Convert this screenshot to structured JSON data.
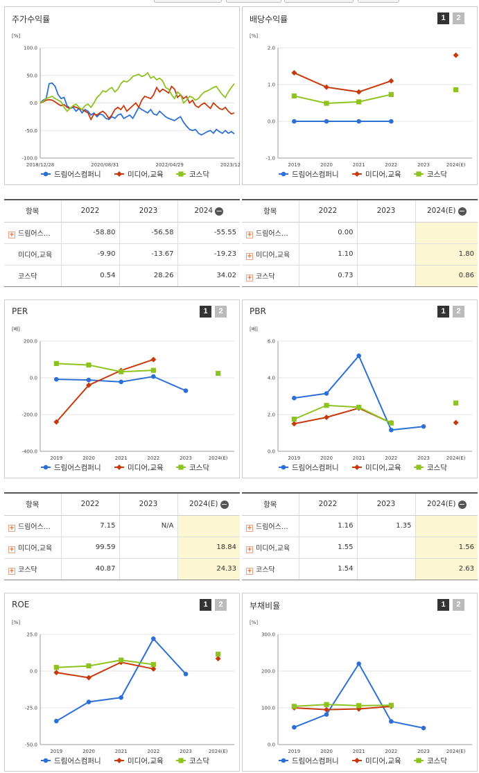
{
  "colors": {
    "drim": "#2c6fd6",
    "media": "#c8380b",
    "kosdaq": "#8dc21f"
  },
  "legend": [
    "드림어스컴퍼니",
    "미디어,교육",
    "코스닥"
  ],
  "panels": {
    "stock": {
      "title": "주가수익률"
    },
    "dividend": {
      "title": "배당수익률"
    },
    "per": {
      "title": "PER"
    },
    "pbr": {
      "title": "PBR"
    },
    "roe": {
      "title": "ROE"
    },
    "debt": {
      "title": "부채비율"
    }
  },
  "pager": {
    "p1": "1",
    "p2": "2"
  },
  "chart_data": [
    {
      "id": "stock",
      "type": "line",
      "unit": "[%]",
      "ylim": [
        -100,
        100
      ],
      "yticks": [
        "100.0",
        "50.0",
        "0.0",
        "-50.0",
        "-100.0"
      ],
      "xticks": [
        "2018/12/28",
        "2020/08/31",
        "2022/04/29",
        "2023/12/28"
      ],
      "series": [
        {
          "name": "드림어스컴퍼니",
          "values": [
            0,
            5,
            8,
            35,
            36,
            30,
            15,
            8,
            10,
            -5,
            -10,
            -8,
            -15,
            -10,
            -18,
            -12,
            -15,
            -22,
            -18,
            -25,
            -20,
            -22,
            -28,
            -30,
            -25,
            -28,
            -22,
            -20,
            -28,
            -25,
            -22,
            -28,
            -18,
            -8,
            -12,
            -15,
            -18,
            -12,
            -20,
            -22,
            -15,
            -20,
            -25,
            -28,
            -30,
            -32,
            -28,
            -25,
            -35,
            -42,
            -48,
            -50,
            -48,
            -55,
            -58,
            -55,
            -52,
            -50,
            -55,
            -48,
            -52,
            -55,
            -50,
            -55,
            -52,
            -56
          ]
        },
        {
          "name": "미디어,교육",
          "values": [
            0,
            2,
            5,
            6,
            5,
            2,
            -2,
            -5,
            -3,
            -8,
            -10,
            -6,
            -8,
            -10,
            -12,
            -15,
            -18,
            -30,
            -20,
            -22,
            -18,
            -15,
            -20,
            -28,
            -22,
            -12,
            -8,
            -12,
            -5,
            -15,
            -10,
            -5,
            0,
            -8,
            5,
            12,
            10,
            8,
            15,
            28,
            20,
            25,
            22,
            18,
            30,
            25,
            10,
            15,
            8,
            12,
            0,
            5,
            -5,
            -8,
            -3,
            0,
            -5,
            -10,
            0,
            -5,
            -10,
            -12,
            -8,
            -15,
            -20,
            -18
          ]
        },
        {
          "name": "코스닥",
          "values": [
            0,
            3,
            8,
            10,
            12,
            8,
            5,
            2,
            -8,
            -15,
            -10,
            -5,
            -2,
            -8,
            -12,
            -5,
            -2,
            -8,
            0,
            10,
            15,
            22,
            20,
            25,
            28,
            20,
            25,
            35,
            40,
            38,
            42,
            48,
            50,
            52,
            48,
            50,
            55,
            45,
            48,
            42,
            45,
            40,
            28,
            25,
            15,
            8,
            20,
            15,
            0,
            5,
            12,
            10,
            5,
            8,
            15,
            20,
            22,
            25,
            28,
            30,
            22,
            15,
            10,
            20,
            28,
            35
          ]
        }
      ]
    },
    {
      "id": "dividend",
      "type": "line",
      "unit": "[%]",
      "ylim": [
        -1,
        2
      ],
      "yticks": [
        "2.0",
        "1.0",
        "0.0",
        "-1.0"
      ],
      "categories": [
        "2019",
        "2020",
        "2021",
        "2022",
        "2023",
        "2024(E)"
      ],
      "series": [
        {
          "name": "드림어스컴퍼니",
          "values": [
            0,
            0,
            0,
            0,
            null,
            null
          ]
        },
        {
          "name": "미디어,교육",
          "values": [
            1.32,
            0.93,
            0.8,
            1.1,
            null,
            1.8
          ]
        },
        {
          "name": "코스닥",
          "values": [
            0.69,
            0.49,
            0.53,
            0.73,
            null,
            0.86
          ]
        }
      ]
    },
    {
      "id": "per",
      "type": "line",
      "unit": "[배]",
      "ylim": [
        -400,
        200
      ],
      "yticks": [
        "200.0",
        "0.0",
        "-200.0",
        "-400.0"
      ],
      "categories": [
        "2019",
        "2020",
        "2021",
        "2022",
        "2023",
        "2024(E)"
      ],
      "series": [
        {
          "name": "드림어스컴퍼니",
          "values": [
            -8,
            -12,
            -22,
            7.15,
            -70,
            null
          ]
        },
        {
          "name": "미디어,교육",
          "values": [
            -240,
            -40,
            40,
            99.59,
            null,
            null
          ]
        },
        {
          "name": "코스닥",
          "values": [
            78,
            70,
            33,
            40.87,
            null,
            24.33
          ]
        }
      ]
    },
    {
      "id": "pbr",
      "type": "line",
      "unit": "[배]",
      "ylim": [
        0,
        6
      ],
      "yticks": [
        "6.0",
        "4.0",
        "2.0",
        "0.0"
      ],
      "categories": [
        "2019",
        "2020",
        "2021",
        "2022",
        "2023",
        "2024(E)"
      ],
      "series": [
        {
          "name": "드림어스컴퍼니",
          "values": [
            2.9,
            3.15,
            5.2,
            1.16,
            1.35,
            null
          ]
        },
        {
          "name": "미디어,교육",
          "values": [
            1.5,
            1.85,
            2.35,
            1.55,
            null,
            1.56
          ]
        },
        {
          "name": "코스닥",
          "values": [
            1.75,
            2.5,
            2.4,
            1.54,
            null,
            2.63
          ]
        }
      ]
    },
    {
      "id": "roe",
      "type": "line",
      "unit": "[%]",
      "ylim": [
        -50,
        25
      ],
      "yticks": [
        "25.0",
        "0.0",
        "-25.0",
        "-50.0"
      ],
      "categories": [
        "2019",
        "2020",
        "2021",
        "2022",
        "2023",
        "2024(E)"
      ],
      "series": [
        {
          "name": "드림어스컴퍼니",
          "values": [
            -34,
            -21,
            -18,
            22,
            -2,
            null
          ]
        },
        {
          "name": "미디어,교육",
          "values": [
            -1,
            -4.5,
            6,
            1.5,
            null,
            8.5
          ]
        },
        {
          "name": "코스닥",
          "values": [
            2.5,
            3.5,
            7.5,
            4.5,
            null,
            11.5
          ]
        }
      ]
    },
    {
      "id": "debt",
      "type": "line",
      "unit": "[%]",
      "ylim": [
        0,
        300
      ],
      "yticks": [
        "300.0",
        "200.0",
        "100.0",
        "0.0"
      ],
      "categories": [
        "2019",
        "2020",
        "2021",
        "2022",
        "2023",
        "2024(E)"
      ],
      "series": [
        {
          "name": "드림어스컴퍼니",
          "values": [
            47,
            82,
            220,
            63,
            45,
            null
          ]
        },
        {
          "name": "미디어,교육",
          "values": [
            100,
            95,
            97,
            104,
            null,
            null
          ]
        },
        {
          "name": "코스닥",
          "values": [
            104,
            109,
            106,
            107,
            null,
            null
          ]
        }
      ]
    }
  ],
  "tables": {
    "stock": {
      "headers": [
        "항목",
        "2022",
        "2023",
        "2024"
      ],
      "rows": [
        {
          "name": "드림어스…",
          "expand": true,
          "values": [
            "-58.80",
            "-56.58",
            "-55.55"
          ]
        },
        {
          "name": "미디어,교육",
          "expand": false,
          "values": [
            "-9.90",
            "-13.67",
            "-19.23"
          ]
        },
        {
          "name": "코스닥",
          "expand": false,
          "values": [
            "0.54",
            "28.26",
            "34.02"
          ]
        }
      ]
    },
    "dividend": {
      "headers": [
        "항목",
        "2022",
        "2023",
        "2024(E)"
      ],
      "rows": [
        {
          "name": "드림어스…",
          "expand": true,
          "values": [
            "0.00",
            "",
            ""
          ]
        },
        {
          "name": "미디어,교육",
          "expand": true,
          "values": [
            "1.10",
            "",
            "1.80"
          ]
        },
        {
          "name": "코스닥",
          "expand": true,
          "values": [
            "0.73",
            "",
            "0.86"
          ]
        }
      ]
    },
    "per": {
      "headers": [
        "항목",
        "2022",
        "2023",
        "2024(E)"
      ],
      "rows": [
        {
          "name": "드림어스…",
          "expand": true,
          "values": [
            "7.15",
            "N/A",
            ""
          ]
        },
        {
          "name": "미디어,교육",
          "expand": true,
          "values": [
            "99.59",
            "",
            "18.84"
          ]
        },
        {
          "name": "코스닥",
          "expand": true,
          "values": [
            "40.87",
            "",
            "24.33"
          ]
        }
      ]
    },
    "pbr": {
      "headers": [
        "항목",
        "2022",
        "2023",
        "2024(E)"
      ],
      "rows": [
        {
          "name": "드림어스…",
          "expand": true,
          "values": [
            "1.16",
            "1.35",
            ""
          ]
        },
        {
          "name": "미디어,교육",
          "expand": true,
          "values": [
            "1.55",
            "",
            "1.56"
          ]
        },
        {
          "name": "코스닥",
          "expand": true,
          "values": [
            "1.54",
            "",
            "2.63"
          ]
        }
      ]
    }
  }
}
